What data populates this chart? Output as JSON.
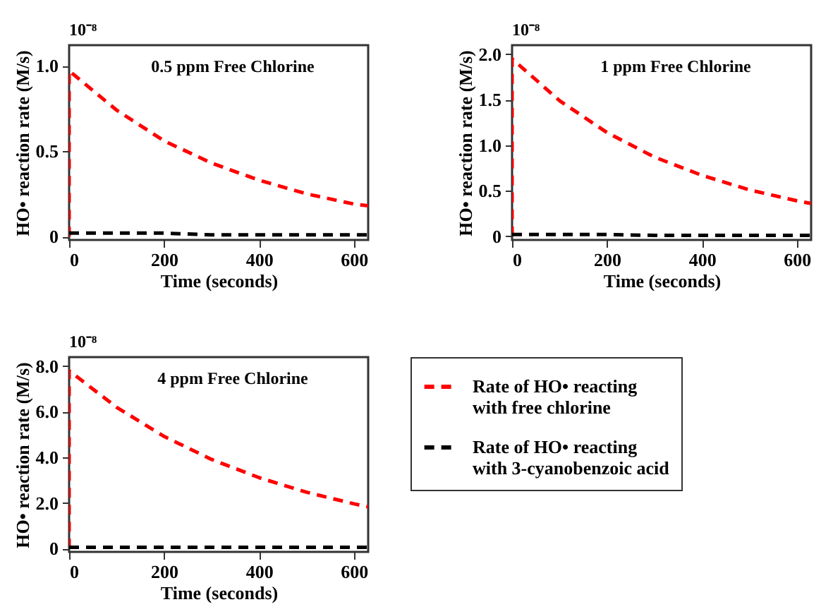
{
  "chart_data": [
    {
      "type": "line",
      "title": "0.5 ppm Free Chlorine",
      "xlabel": "Time (seconds)",
      "ylabel": "HO• reaction rate (M/s)",
      "annotations": [
        "10⁻⁸"
      ],
      "xlim": [
        0,
        630
      ],
      "xticks": [
        0,
        200,
        400,
        600
      ],
      "ylim": [
        -0.02,
        1.12
      ],
      "yticks": [
        {
          "value": 0,
          "label": "0"
        },
        {
          "value": 0.5,
          "label": "0.5"
        },
        {
          "value": 1,
          "label": "1.0"
        }
      ],
      "grid": false,
      "line_style": "dashed",
      "series": [
        {
          "color": "#ff0000",
          "x": [
            0,
            0,
            100,
            200,
            300,
            400,
            500,
            600,
            630
          ],
          "values": [
            0,
            0.97,
            0.74,
            0.56,
            0.43,
            0.33,
            0.25,
            0.19,
            0.18
          ]
        },
        {
          "color": "#000000",
          "x": [
            0,
            100,
            200,
            300,
            400,
            500,
            600,
            630
          ],
          "values": [
            0.02,
            0.02,
            0.02,
            0.01,
            0.01,
            0.01,
            0.01,
            0.01
          ]
        }
      ]
    },
    {
      "type": "line",
      "title": "1 ppm Free Chlorine",
      "xlabel": "Time (seconds)",
      "ylabel": "HO• reaction rate (M/s)",
      "annotations": [
        "10⁻⁸"
      ],
      "xlim": [
        0,
        630
      ],
      "xticks": [
        0,
        200,
        400,
        600
      ],
      "ylim": [
        -0.04,
        2.1
      ],
      "yticks": [
        {
          "value": 0,
          "label": "0"
        },
        {
          "value": 0.5,
          "label": "0.5"
        },
        {
          "value": 1,
          "label": "1.0"
        },
        {
          "value": 1.5,
          "label": "1.5"
        },
        {
          "value": 2,
          "label": "2.0"
        }
      ],
      "grid": false,
      "line_style": "dashed",
      "series": [
        {
          "color": "#ff0000",
          "x": [
            0,
            0,
            100,
            200,
            300,
            400,
            500,
            600,
            630
          ],
          "values": [
            0,
            1.95,
            1.49,
            1.14,
            0.87,
            0.67,
            0.51,
            0.39,
            0.36
          ]
        },
        {
          "color": "#000000",
          "x": [
            0,
            100,
            200,
            300,
            400,
            500,
            600,
            630
          ],
          "values": [
            0.02,
            0.02,
            0.02,
            0.01,
            0.01,
            0.01,
            0.01,
            0.01
          ]
        }
      ]
    },
    {
      "type": "line",
      "title": "4 ppm Free Chlorine",
      "xlabel": "Time (seconds)",
      "ylabel": "HO• reaction rate (M/s)",
      "annotations": [
        "10⁻⁸"
      ],
      "xlim": [
        0,
        630
      ],
      "xticks": [
        0,
        200,
        400,
        600
      ],
      "ylim": [
        -0.15,
        8.4
      ],
      "yticks": [
        {
          "value": 0,
          "label": "0"
        },
        {
          "value": 2,
          "label": "2.0"
        },
        {
          "value": 4,
          "label": "4.0"
        },
        {
          "value": 6,
          "label": "6.0"
        },
        {
          "value": 8,
          "label": "8.0"
        }
      ],
      "grid": false,
      "legend": "right",
      "line_style": "dashed",
      "series": [
        {
          "name": "Rate of HO• reacting with free chlorine",
          "color": "#ff0000",
          "x": [
            0,
            0,
            100,
            200,
            300,
            400,
            500,
            600,
            630
          ],
          "values": [
            0,
            7.8,
            6.2,
            4.92,
            3.91,
            3.11,
            2.47,
            1.96,
            1.83
          ]
        },
        {
          "name": "Rate of HO• reacting with 3-cyanobenzoic acid",
          "color": "#000000",
          "x": [
            0,
            100,
            200,
            300,
            400,
            500,
            600,
            630
          ],
          "values": [
            0.05,
            0.05,
            0.05,
            0.05,
            0.05,
            0.05,
            0.05,
            0.05
          ]
        }
      ]
    }
  ]
}
